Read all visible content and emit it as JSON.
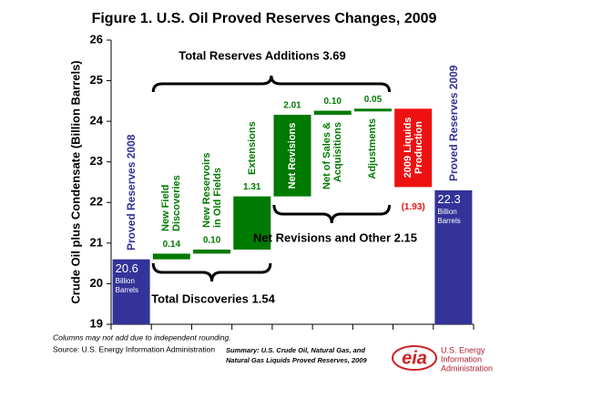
{
  "chart_data": {
    "type": "waterfall",
    "title": "Figure 1. U.S. Oil Proved Reserves Changes, 2009",
    "y_label": "Crude Oil plus Condensate (Billion Barrels)",
    "categories": [
      "Proved Reserves 2008",
      "New Field Discoveries",
      "New Reservoirs in Old Fields",
      "Extensions",
      "Net Revisions",
      "Net of Sales & Acquisitions",
      "Adjustments",
      "2009 Liquids Production",
      "Proved Reserves 2009"
    ],
    "measures": [
      "total",
      "increase",
      "increase",
      "increase",
      "increase",
      "increase",
      "increase",
      "decrease",
      "total"
    ],
    "values": [
      20.6,
      0.14,
      0.1,
      1.31,
      2.01,
      0.1,
      0.05,
      -1.93,
      22.3
    ],
    "value_labels": [
      "20.6",
      "0.14",
      "0.10",
      "1.31",
      "2.01",
      "0.10",
      "0.05",
      "(1.93)",
      "22.3"
    ],
    "total_unit": "Billion Barrels",
    "colors": {
      "total": "#333399",
      "increase": "#007a00",
      "decrease": "#ee1111"
    },
    "ylim": [
      19,
      26
    ],
    "yticks": [
      19,
      20,
      21,
      22,
      23,
      24,
      25,
      26
    ],
    "annotations": [
      "Total Reserves Additions 3.69",
      "Total Discoveries 1.54",
      "Net Revisions and Other 2.15"
    ]
  },
  "footer": {
    "note": "Columns may not add due to independent rounding.",
    "source": "Source: U.S. Energy Information Administration",
    "summary": [
      "Summary: U.S. Crude Oil, Natural Gas, and",
      "Natural Gas Liquids Proved Reserves, 2009"
    ]
  },
  "logo": {
    "mark": "eia",
    "lines": [
      "U.S. Energy",
      "Information",
      "Administration"
    ]
  }
}
